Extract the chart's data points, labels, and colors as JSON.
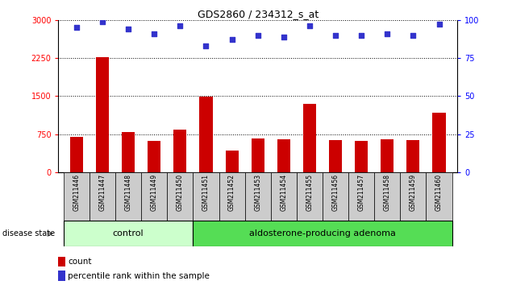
{
  "title": "GDS2860 / 234312_s_at",
  "samples": [
    "GSM211446",
    "GSM211447",
    "GSM211448",
    "GSM211449",
    "GSM211450",
    "GSM211451",
    "GSM211452",
    "GSM211453",
    "GSM211454",
    "GSM211455",
    "GSM211456",
    "GSM211457",
    "GSM211458",
    "GSM211459",
    "GSM211460"
  ],
  "counts": [
    700,
    2270,
    800,
    620,
    840,
    1490,
    430,
    670,
    660,
    1350,
    630,
    620,
    660,
    630,
    1180
  ],
  "percentiles": [
    95,
    99,
    94,
    91,
    96,
    83,
    87,
    90,
    89,
    96,
    90,
    90,
    91,
    90,
    97
  ],
  "ylim_left": [
    0,
    3000
  ],
  "ylim_right": [
    0,
    100
  ],
  "yticks_left": [
    0,
    750,
    1500,
    2250,
    3000
  ],
  "yticks_right": [
    0,
    25,
    50,
    75,
    100
  ],
  "bar_color": "#cc0000",
  "dot_color": "#3333cc",
  "n_control": 5,
  "n_adenoma": 10,
  "control_label": "control",
  "adenoma_label": "aldosterone-producing adenoma",
  "disease_state_label": "disease state",
  "legend_count": "count",
  "legend_percentile": "percentile rank within the sample",
  "control_color": "#ccffcc",
  "adenoma_color": "#55dd55",
  "tick_bg_color": "#cccccc"
}
